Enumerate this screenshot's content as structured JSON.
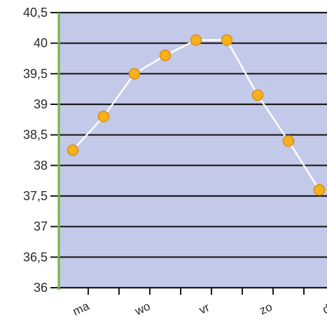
{
  "chart_data": {
    "type": "line",
    "title": "",
    "xlabel": "",
    "ylabel": "",
    "ylim": [
      36,
      40.5
    ],
    "y_ticks": [
      "36",
      "36,5",
      "37",
      "37,5",
      "38",
      "38,5",
      "39",
      "39,5",
      "40",
      "40,5"
    ],
    "y_tick_values": [
      36,
      36.5,
      37,
      37.5,
      38,
      38.5,
      39,
      39.5,
      40,
      40.5
    ],
    "x_day_labels": [
      "ma",
      "wo",
      "vr",
      "zo",
      "di"
    ],
    "x_day_positions": [
      1.5,
      3.5,
      5.5,
      7.5,
      9.5
    ],
    "x_tick_positions": [
      1.5,
      2.5,
      3.5,
      4.5,
      5.5,
      6.5,
      7.5,
      8.5,
      9.5
    ],
    "xlim": [
      0.6,
      9.75
    ],
    "series": [
      {
        "x": [
          1,
          2,
          3,
          4,
          5,
          6,
          7,
          8,
          9
        ],
        "values": [
          38.25,
          38.8,
          39.5,
          39.8,
          40.05,
          40.05,
          39.15,
          38.4,
          37.6
        ]
      }
    ],
    "grid": "horizontal",
    "colors": {
      "plot_background": "#c3c9e8",
      "grid_line": "#1a1a1a",
      "axis_line": "#6fb53f",
      "line": "#ffffff",
      "marker_fill": "#f6b21c",
      "marker_stroke": "#e08a10"
    }
  }
}
